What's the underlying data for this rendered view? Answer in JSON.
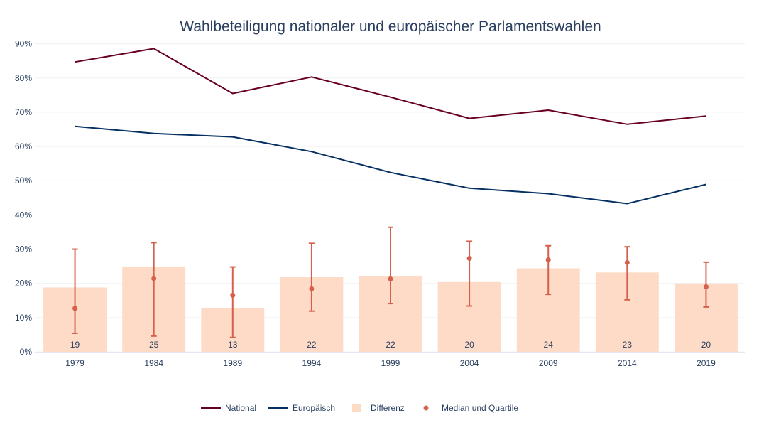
{
  "chart_data": {
    "type": "bar",
    "title": "Wahlbeteiligung nationaler und europäischer Parlamentswahlen",
    "categories": [
      "1979",
      "1984",
      "1989",
      "1994",
      "1999",
      "2004",
      "2009",
      "2014",
      "2019"
    ],
    "ylim": [
      0,
      92
    ],
    "y_ticks": [
      0,
      10,
      20,
      30,
      40,
      50,
      60,
      70,
      80,
      90
    ],
    "y_tick_labels": [
      "0%",
      "10%",
      "20%",
      "30%",
      "40%",
      "50%",
      "60%",
      "70%",
      "80%",
      "90%"
    ],
    "grid": true,
    "legend_position": "bottom",
    "series": [
      {
        "name": "National",
        "type": "line",
        "color": "#67001f",
        "values": [
          84.7,
          88.6,
          75.5,
          80.3,
          74.4,
          68.2,
          70.6,
          66.5,
          68.9
        ]
      },
      {
        "name": "Europäisch",
        "type": "line",
        "color": "#053061",
        "values": [
          65.9,
          63.8,
          62.8,
          58.5,
          52.4,
          47.8,
          46.2,
          43.3,
          48.9
        ]
      },
      {
        "name": "Differenz",
        "type": "bar",
        "color": "#fddbc7",
        "values": [
          18.8,
          24.8,
          12.7,
          21.8,
          22.0,
          20.4,
          24.4,
          23.2,
          20.0
        ],
        "labels": [
          "19",
          "25",
          "13",
          "22",
          "22",
          "20",
          "24",
          "23",
          "20"
        ]
      },
      {
        "name": "Median und Quartile",
        "type": "scatter",
        "color": "#d6604d",
        "median": [
          12.7,
          21.4,
          16.5,
          18.4,
          21.3,
          27.3,
          26.9,
          26.1,
          19.0
        ],
        "lower": [
          5.4,
          4.6,
          4.2,
          11.9,
          14.1,
          13.4,
          16.8,
          15.2,
          13.1
        ],
        "upper": [
          30.0,
          31.9,
          24.8,
          31.7,
          36.4,
          32.3,
          31.0,
          30.7,
          26.2
        ]
      }
    ]
  }
}
